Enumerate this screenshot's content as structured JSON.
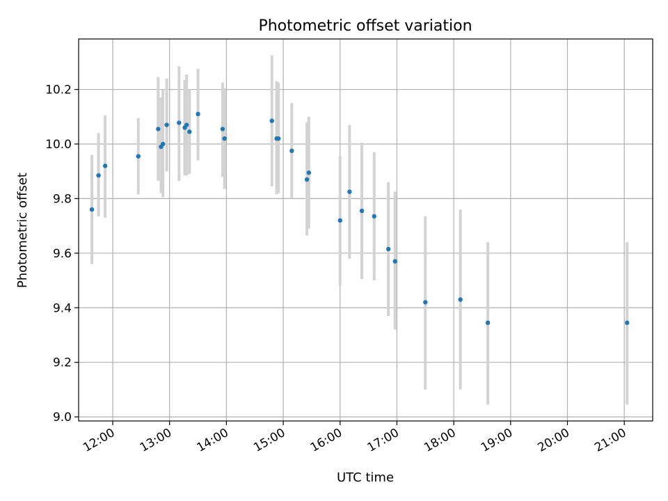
{
  "chart_data": {
    "type": "scatter",
    "title": "Photometric offset variation",
    "xlabel": "UTC time",
    "ylabel": "Photometric offset",
    "x_tick_labels": [
      "12:00",
      "13:00",
      "14:00",
      "15:00",
      "16:00",
      "17:00",
      "18:00",
      "19:00",
      "20:00",
      "21:00"
    ],
    "x_tick_values_hours": [
      12,
      13,
      14,
      15,
      16,
      17,
      18,
      19,
      20,
      21
    ],
    "y_tick_labels": [
      "9.0",
      "9.2",
      "9.4",
      "9.6",
      "9.8",
      "10.0",
      "10.2"
    ],
    "y_tick_values": [
      9.0,
      9.2,
      9.4,
      9.6,
      9.8,
      10.0,
      10.2
    ],
    "xlim_hours": [
      11.4,
      21.5
    ],
    "ylim": [
      8.985,
      10.385
    ],
    "grid": true,
    "colors": {
      "point": "#1f77b4",
      "errorbar": "#d3d3d3",
      "grid": "#b0b0b0"
    },
    "points": [
      {
        "t": "11:38",
        "y": 9.76,
        "ylo": 9.56,
        "yhi": 9.96
      },
      {
        "t": "11:45",
        "y": 9.885,
        "ylo": 9.735,
        "yhi": 10.04
      },
      {
        "t": "11:52",
        "y": 9.92,
        "ylo": 9.73,
        "yhi": 10.105
      },
      {
        "t": "12:27",
        "y": 9.955,
        "ylo": 9.815,
        "yhi": 10.095
      },
      {
        "t": "12:48",
        "y": 10.055,
        "ylo": 9.865,
        "yhi": 10.245
      },
      {
        "t": "12:51",
        "y": 9.99,
        "ylo": 9.82,
        "yhi": 10.17
      },
      {
        "t": "12:53",
        "y": 10.0,
        "ylo": 9.805,
        "yhi": 10.2
      },
      {
        "t": "12:57",
        "y": 10.07,
        "ylo": 9.9,
        "yhi": 10.24
      },
      {
        "t": "13:10",
        "y": 10.078,
        "ylo": 9.865,
        "yhi": 10.285
      },
      {
        "t": "13:16",
        "y": 10.06,
        "ylo": 9.885,
        "yhi": 10.235
      },
      {
        "t": "13:18",
        "y": 10.07,
        "ylo": 9.885,
        "yhi": 10.255
      },
      {
        "t": "13:21",
        "y": 10.045,
        "ylo": 9.89,
        "yhi": 10.2
      },
      {
        "t": "13:30",
        "y": 10.11,
        "ylo": 9.94,
        "yhi": 10.275
      },
      {
        "t": "13:56",
        "y": 10.055,
        "ylo": 9.88,
        "yhi": 10.225
      },
      {
        "t": "13:58",
        "y": 10.02,
        "ylo": 9.835,
        "yhi": 10.205
      },
      {
        "t": "14:48",
        "y": 10.085,
        "ylo": 9.845,
        "yhi": 10.325
      },
      {
        "t": "14:53",
        "y": 10.02,
        "ylo": 9.815,
        "yhi": 10.23
      },
      {
        "t": "14:55",
        "y": 10.02,
        "ylo": 9.82,
        "yhi": 10.225
      },
      {
        "t": "15:09",
        "y": 9.975,
        "ylo": 9.8,
        "yhi": 10.15
      },
      {
        "t": "15:25",
        "y": 9.87,
        "ylo": 9.665,
        "yhi": 10.08
      },
      {
        "t": "15:27",
        "y": 9.895,
        "ylo": 9.69,
        "yhi": 10.1
      },
      {
        "t": "16:00",
        "y": 9.72,
        "ylo": 9.48,
        "yhi": 9.955
      },
      {
        "t": "16:10",
        "y": 9.825,
        "ylo": 9.58,
        "yhi": 10.07
      },
      {
        "t": "16:23",
        "y": 9.755,
        "ylo": 9.505,
        "yhi": 10.005
      },
      {
        "t": "16:36",
        "y": 9.735,
        "ylo": 9.5,
        "yhi": 9.97
      },
      {
        "t": "16:51",
        "y": 9.615,
        "ylo": 9.37,
        "yhi": 9.86
      },
      {
        "t": "16:58",
        "y": 9.57,
        "ylo": 9.32,
        "yhi": 9.825
      },
      {
        "t": "17:30",
        "y": 9.42,
        "ylo": 9.1,
        "yhi": 9.735
      },
      {
        "t": "18:07",
        "y": 9.43,
        "ylo": 9.1,
        "yhi": 9.76
      },
      {
        "t": "18:36",
        "y": 9.345,
        "ylo": 9.045,
        "yhi": 9.64
      },
      {
        "t": "21:03",
        "y": 9.345,
        "ylo": 9.045,
        "yhi": 9.64
      }
    ]
  }
}
